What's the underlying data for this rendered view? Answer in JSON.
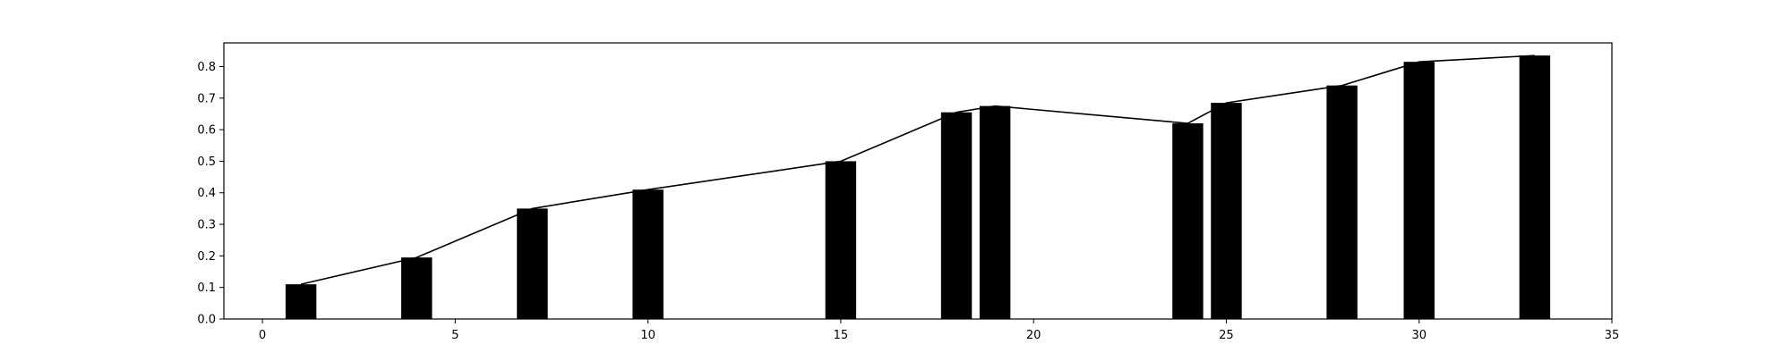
{
  "chart_data": {
    "type": "bar",
    "x": [
      1,
      4,
      7,
      10,
      15,
      18,
      19,
      24,
      25,
      28,
      30,
      33
    ],
    "values": [
      0.11,
      0.195,
      0.35,
      0.41,
      0.5,
      0.655,
      0.675,
      0.62,
      0.685,
      0.74,
      0.815,
      0.835
    ],
    "overlay_line": true,
    "title": "",
    "xlabel": "",
    "ylabel": "",
    "xlim": [
      -1,
      35
    ],
    "ylim": [
      0,
      0.875
    ],
    "xticks": [
      0,
      5,
      10,
      15,
      20,
      25,
      30,
      35
    ],
    "yticks": [
      0.0,
      0.1,
      0.2,
      0.3,
      0.4,
      0.5,
      0.6,
      0.7,
      0.8
    ],
    "xtick_labels": [
      "0",
      "5",
      "10",
      "15",
      "20",
      "25",
      "30",
      "35"
    ],
    "ytick_labels": [
      "0.0",
      "0.1",
      "0.2",
      "0.3",
      "0.4",
      "0.5",
      "0.6",
      "0.7",
      "0.8"
    ],
    "bar_width": 0.8,
    "grid": false,
    "colors": {
      "bar": "#000000",
      "line": "#000000",
      "axes": "#000000",
      "background": "#ffffff"
    }
  }
}
